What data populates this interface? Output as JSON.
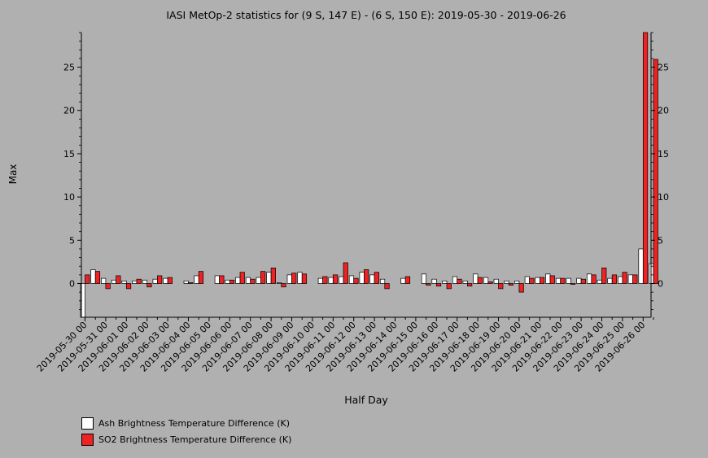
{
  "chart_data": {
    "type": "bar",
    "title": "IASI MetOp-2 statistics for (9 S, 147 E) - (6 S, 150 E): 2019-05-30 - 2019-06-26",
    "xlabel": "Half Day",
    "ylabel": "Max",
    "ylim": [
      -3.9,
      29.0
    ],
    "yticks": [
      0,
      5,
      10,
      15,
      20,
      25
    ],
    "grid": false,
    "legend_position": "bottom-left",
    "x_tick_labels": [
      "2019-05-30 00",
      "2019-05-31 00",
      "2019-06-01 00",
      "2019-06-02 00",
      "2019-06-03 00",
      "2019-06-04 00",
      "2019-06-05 00",
      "2019-06-06 00",
      "2019-06-07 00",
      "2019-06-08 00",
      "2019-06-09 00",
      "2019-06-10 00",
      "2019-06-11 00",
      "2019-06-12 00",
      "2019-06-13 00",
      "2019-06-14 00",
      "2019-06-15 00",
      "2019-06-16 00",
      "2019-06-17 00",
      "2019-06-18 00",
      "2019-06-19 00",
      "2019-06-20 00",
      "2019-06-21 00",
      "2019-06-22 00",
      "2019-06-23 00",
      "2019-06-24 00",
      "2019-06-25 00",
      "2019-06-26 00"
    ],
    "categories": [
      "2019-05-30 00",
      "2019-05-30 12",
      "2019-05-31 00",
      "2019-05-31 12",
      "2019-06-01 00",
      "2019-06-01 12",
      "2019-06-02 00",
      "2019-06-02 12",
      "2019-06-03 00",
      "2019-06-03 12",
      "2019-06-04 00",
      "2019-06-04 12",
      "2019-06-05 00",
      "2019-06-05 12",
      "2019-06-06 00",
      "2019-06-06 12",
      "2019-06-07 00",
      "2019-06-07 12",
      "2019-06-08 00",
      "2019-06-08 12",
      "2019-06-09 00",
      "2019-06-09 12",
      "2019-06-10 00",
      "2019-06-10 12",
      "2019-06-11 00",
      "2019-06-11 12",
      "2019-06-12 00",
      "2019-06-12 12",
      "2019-06-13 00",
      "2019-06-13 12",
      "2019-06-14 00",
      "2019-06-14 12",
      "2019-06-15 00",
      "2019-06-15 12",
      "2019-06-16 00",
      "2019-06-16 12",
      "2019-06-17 00",
      "2019-06-17 12",
      "2019-06-18 00",
      "2019-06-18 12",
      "2019-06-19 00",
      "2019-06-19 12",
      "2019-06-20 00",
      "2019-06-20 12",
      "2019-06-21 00",
      "2019-06-21 12",
      "2019-06-22 00",
      "2019-06-22 12",
      "2019-06-23 00",
      "2019-06-23 12",
      "2019-06-24 00",
      "2019-06-24 12",
      "2019-06-25 00",
      "2019-06-25 12",
      "2019-06-26 00",
      "2019-06-26 12"
    ],
    "series": [
      {
        "name": "Ash Brightness Temperature Difference (K)",
        "color": "#ffffff",
        "values": [
          -3.9,
          1.6,
          0.6,
          0.4,
          0.3,
          0.3,
          0.4,
          0.5,
          0.6,
          null,
          0.3,
          0.9,
          null,
          0.9,
          0.4,
          0.7,
          0.7,
          0.7,
          1.3,
          0.1,
          1.0,
          1.3,
          null,
          0.6,
          0.7,
          0.8,
          0.9,
          1.3,
          1.0,
          0.5,
          null,
          0.6,
          null,
          1.1,
          0.5,
          0.3,
          0.8,
          0.3,
          1.1,
          0.7,
          0.5,
          0.3,
          0.3,
          0.8,
          0.7,
          1.1,
          0.6,
          0.6,
          0.6,
          1.1,
          0.4,
          0.6,
          0.8,
          1.0,
          4.0,
          2.3
        ]
      },
      {
        "name": "SO2 Brightness Temperature Difference (K)",
        "color": "#ee2222",
        "values": [
          1.0,
          1.4,
          -0.6,
          0.9,
          -0.6,
          0.5,
          -0.4,
          0.9,
          0.7,
          null,
          0.1,
          1.4,
          null,
          0.9,
          0.4,
          1.3,
          0.5,
          1.4,
          1.8,
          -0.4,
          1.2,
          1.1,
          null,
          0.8,
          1.0,
          2.4,
          0.6,
          1.6,
          1.3,
          -0.6,
          null,
          0.8,
          null,
          -0.2,
          -0.3,
          -0.6,
          0.5,
          -0.3,
          0.7,
          0.2,
          -0.6,
          -0.2,
          -1.0,
          0.6,
          0.7,
          0.9,
          0.6,
          -0.1,
          0.5,
          1.0,
          1.8,
          1.0,
          1.3,
          1.0,
          29.0,
          25.9
        ]
      }
    ]
  }
}
